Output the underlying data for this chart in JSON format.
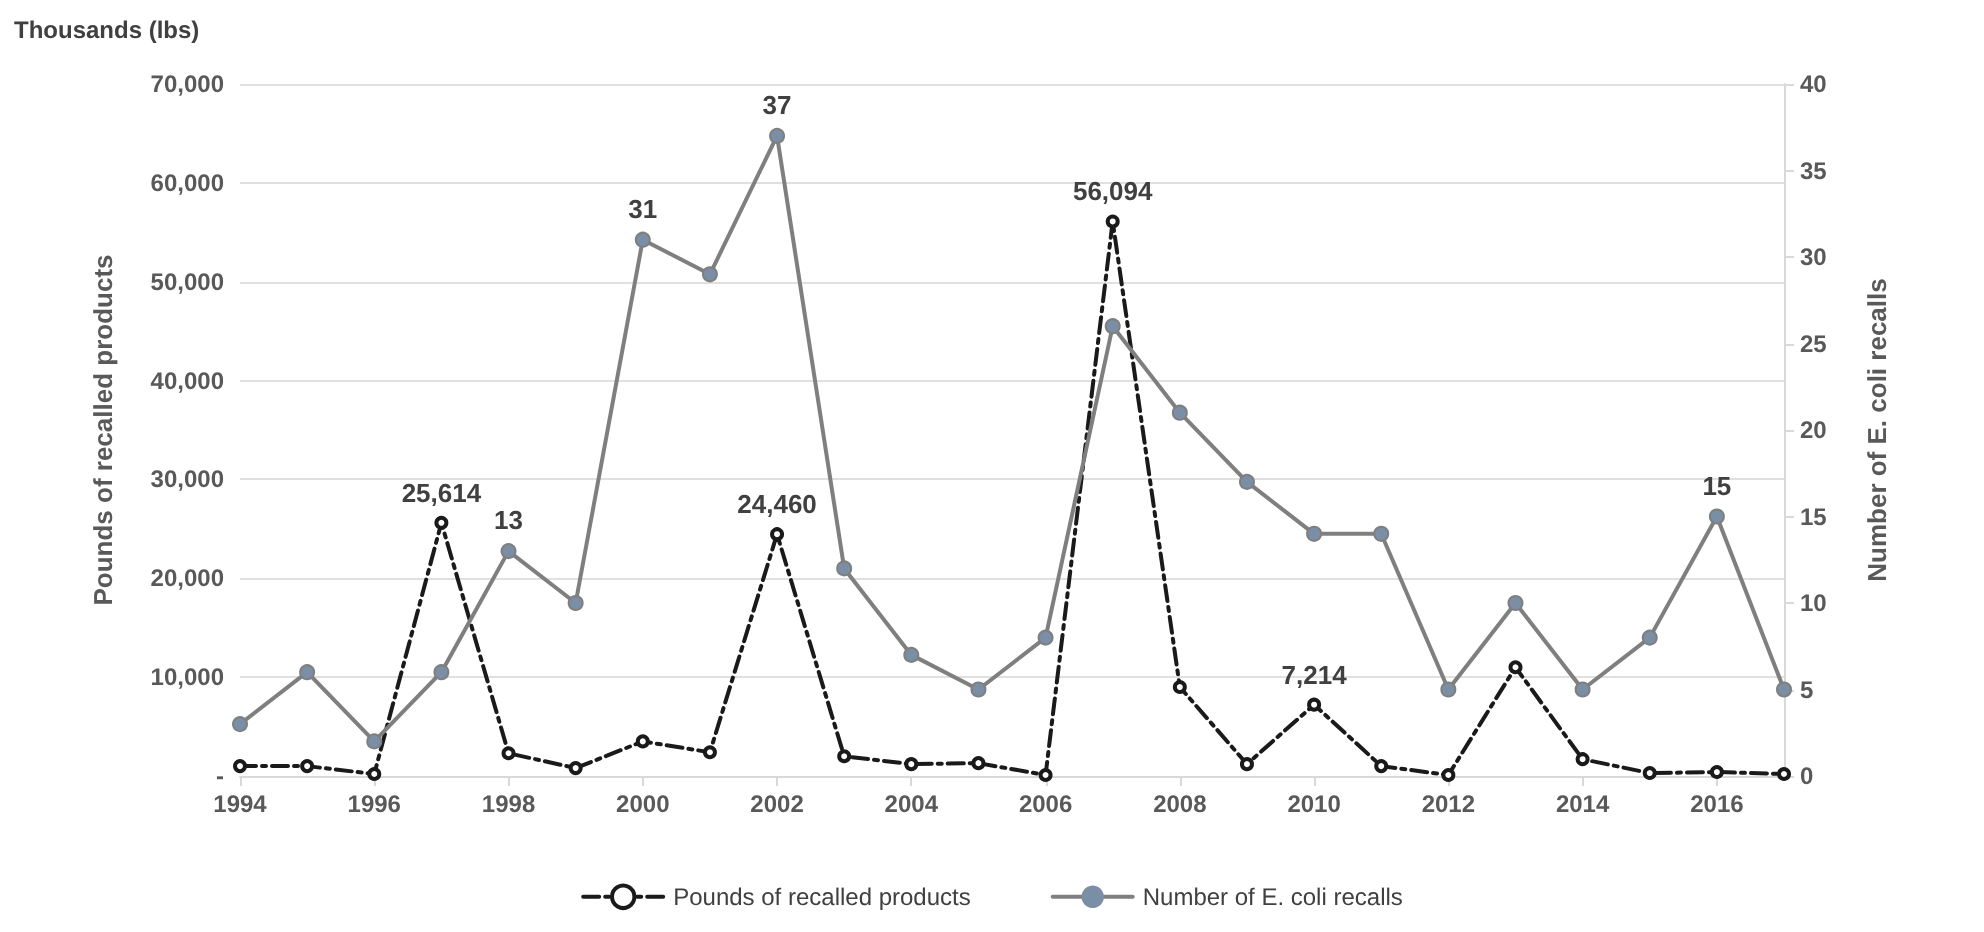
{
  "chart_data": {
    "type": "line",
    "x": [
      1994,
      1995,
      1996,
      1997,
      1998,
      1999,
      2000,
      2001,
      2002,
      2003,
      2004,
      2005,
      2006,
      2007,
      2008,
      2009,
      2010,
      2011,
      2012,
      2013,
      2014,
      2015,
      2016,
      2017
    ],
    "xlim": [
      1994,
      2017
    ],
    "xticks": [
      1994,
      1996,
      1998,
      2000,
      2002,
      2004,
      2006,
      2008,
      2010,
      2012,
      2014,
      2016
    ],
    "ylabel": "Pounds of recalled products",
    "y2label": "Number of E. coli recalls",
    "annotations": [
      "Thousands (lbs)"
    ],
    "ylim": [
      0,
      70000
    ],
    "yticks": [
      {
        "value": 0,
        "label": "-"
      },
      {
        "value": 10000,
        "label": "10,000"
      },
      {
        "value": 20000,
        "label": "20,000"
      },
      {
        "value": 30000,
        "label": "30,000"
      },
      {
        "value": 40000,
        "label": "40,000"
      },
      {
        "value": 50000,
        "label": "50,000"
      },
      {
        "value": 60000,
        "label": "60,000"
      },
      {
        "value": 70000,
        "label": "70,000"
      }
    ],
    "y2lim": [
      0,
      40
    ],
    "y2ticks": [
      0,
      5,
      10,
      15,
      20,
      25,
      30,
      35,
      40
    ],
    "grid": "y",
    "legend": "bottom",
    "marker": "circle",
    "series": [
      {
        "name": "Pounds of recalled products",
        "color": "#1a1a1a",
        "line_style": "dashed",
        "values": [
          1000,
          1000,
          200,
          25614,
          2300,
          800,
          3500,
          2400,
          24460,
          2000,
          1200,
          1300,
          100,
          56094,
          9000,
          1200,
          7214,
          1000,
          100,
          11000,
          1700,
          300,
          400,
          200
        ],
        "value_labels": [
          null,
          null,
          null,
          "25,614",
          null,
          null,
          null,
          null,
          "24,460",
          null,
          null,
          null,
          null,
          "56,094",
          null,
          null,
          "7,214",
          null,
          null,
          null,
          null,
          null,
          null,
          null
        ]
      },
      {
        "name": "Number of E. coli recalls",
        "color": "#7f7f7f",
        "axis": "y2",
        "line_style": "solid",
        "values": [
          3,
          6,
          2,
          6,
          13,
          10,
          31,
          29,
          37,
          12,
          7,
          5,
          8,
          26,
          21,
          17,
          14,
          14,
          5,
          10,
          5,
          8,
          15,
          5
        ],
        "value_labels": [
          null,
          null,
          null,
          null,
          "13",
          null,
          "31",
          null,
          "37",
          null,
          null,
          null,
          null,
          null,
          null,
          null,
          null,
          null,
          null,
          null,
          null,
          null,
          "15",
          null
        ]
      }
    ]
  }
}
